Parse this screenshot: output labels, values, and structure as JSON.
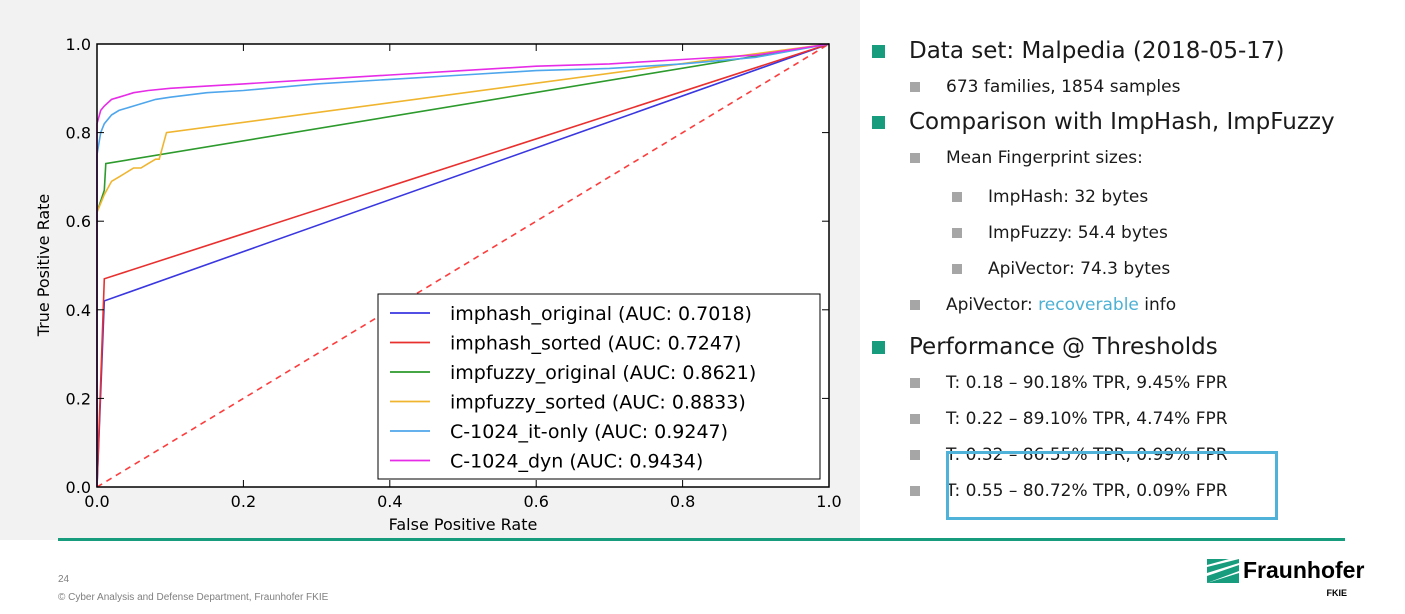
{
  "chart_data": {
    "type": "line",
    "xlabel": "False Positive Rate",
    "ylabel": "True Positive Rate",
    "xlim": [
      0.0,
      1.0
    ],
    "ylim": [
      0.0,
      1.0
    ],
    "xticks": [
      "0.0",
      "0.2",
      "0.4",
      "0.6",
      "0.8",
      "1.0"
    ],
    "yticks": [
      "0.0",
      "0.2",
      "0.4",
      "0.6",
      "0.8",
      "1.0"
    ],
    "grid": false,
    "legend_position": "lower-right",
    "diagonal": {
      "x": [
        0,
        1
      ],
      "y": [
        0,
        1
      ],
      "color": "#ff3b3b",
      "style": "dashed"
    },
    "series": [
      {
        "name": "imphash_original (AUC:  0.7018)",
        "color": "#3a37e0",
        "x": [
          0,
          0.01,
          1.0
        ],
        "y": [
          0,
          0.42,
          1.0
        ]
      },
      {
        "name": "imphash_sorted (AUC:  0.7247)",
        "color": "#e8302f",
        "x": [
          0,
          0.01,
          1.0
        ],
        "y": [
          0,
          0.47,
          1.0
        ]
      },
      {
        "name": "impfuzzy_original (AUC:  0.8621)",
        "color": "#2c9a2c",
        "x": [
          0,
          0.0,
          0.01,
          0.012,
          1.0
        ],
        "y": [
          0,
          0.62,
          0.67,
          0.73,
          1.0
        ]
      },
      {
        "name": "impfuzzy_sorted (AUC:  0.8833)",
        "color": "#f0b52f",
        "x": [
          0,
          0.0,
          0.01,
          0.02,
          0.03,
          0.04,
          0.05,
          0.06,
          0.07,
          0.08,
          0.085,
          0.095,
          1.0
        ],
        "y": [
          0,
          0.62,
          0.66,
          0.69,
          0.7,
          0.71,
          0.72,
          0.72,
          0.73,
          0.74,
          0.74,
          0.8,
          1.0
        ]
      },
      {
        "name": "C-1024_it-only (AUC:  0.9247)",
        "color": "#4ea6ec",
        "x": [
          0,
          0.0,
          0.005,
          0.01,
          0.02,
          0.03,
          0.05,
          0.08,
          0.1,
          0.15,
          0.2,
          0.3,
          0.4,
          0.5,
          0.6,
          0.7,
          0.8,
          0.9,
          1.0
        ],
        "y": [
          0,
          0.75,
          0.8,
          0.82,
          0.84,
          0.85,
          0.86,
          0.875,
          0.88,
          0.89,
          0.895,
          0.91,
          0.92,
          0.93,
          0.94,
          0.945,
          0.955,
          0.97,
          1.0
        ]
      },
      {
        "name": "C-1024_dyn (AUC:  0.9434)",
        "color": "#e62ce6",
        "x": [
          0,
          0.0,
          0.005,
          0.01,
          0.02,
          0.03,
          0.05,
          0.07,
          0.1,
          0.15,
          0.2,
          0.3,
          0.4,
          0.5,
          0.6,
          0.7,
          0.8,
          0.9,
          1.0
        ],
        "y": [
          0,
          0.82,
          0.85,
          0.86,
          0.875,
          0.88,
          0.89,
          0.895,
          0.9,
          0.905,
          0.91,
          0.92,
          0.93,
          0.94,
          0.95,
          0.955,
          0.965,
          0.975,
          1.0
        ]
      }
    ]
  },
  "bullets": [
    {
      "level": 1,
      "text": "Data set: Malpedia (2018-05-17)"
    },
    {
      "level": 2,
      "text": "673 families, 1854 samples"
    },
    {
      "level": 1,
      "text": "Comparison with ImpHash, ImpFuzzy"
    },
    {
      "level": 2,
      "text": "Mean Fingerprint sizes:"
    },
    {
      "level": 3,
      "text": "ImpHash: 32 bytes"
    },
    {
      "level": 3,
      "text": "ImpFuzzy: 54.4 bytes"
    },
    {
      "level": 3,
      "text": "ApiVector: 74.3 bytes"
    },
    {
      "level": 2,
      "text_before": "ApiVector: ",
      "highlight": "recoverable",
      "text_after": " info"
    },
    {
      "level": 1,
      "text": "Performance @ Thresholds"
    },
    {
      "level": 2,
      "text": "T: 0.18 – 90.18% TPR, 9.45% FPR"
    },
    {
      "level": 2,
      "text": "T: 0.22 – 89.10% TPR, 4.74% FPR"
    },
    {
      "level": 2,
      "text": "T: 0.32 – 86.55% TPR, 0.99% FPR"
    },
    {
      "level": 2,
      "text": "T: 0.55 – 80.72% TPR, 0.09% FPR"
    }
  ],
  "footer": {
    "page_number": "24",
    "text": "© Cyber Analysis and Defense Department, Fraunhofer FKIE"
  },
  "logo": {
    "name": "Fraunhofer",
    "sub": "FKIE"
  },
  "colors": {
    "accent": "#179c7d",
    "highlight": "#4cb1d4"
  }
}
